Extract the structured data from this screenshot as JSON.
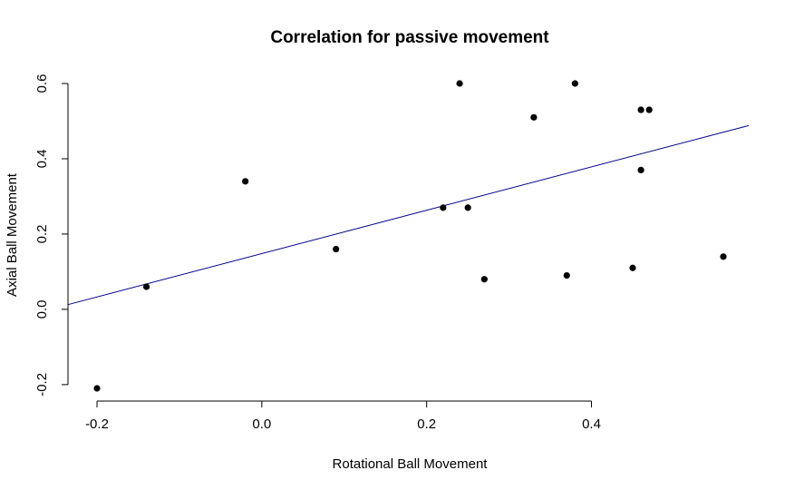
{
  "chart_data": {
    "type": "scatter",
    "title": "Correlation for passive movement",
    "xlabel": "Rotational Ball Movement",
    "ylabel": "Axial Ball Movement",
    "x_ticks": [
      -0.2,
      0.0,
      0.2,
      0.4
    ],
    "x_tick_labels": [
      "-0.2",
      "0.0",
      "0.2",
      "0.4"
    ],
    "y_ticks": [
      -0.2,
      0.0,
      0.2,
      0.4,
      0.6
    ],
    "y_tick_labels": [
      "-0.2",
      "0.0",
      "0.2",
      "0.4",
      "0.6"
    ],
    "xlim": [
      -0.2,
      0.56
    ],
    "ylim": [
      -0.21,
      0.6
    ],
    "grid": false,
    "series": [
      {
        "x": [
          -0.2,
          -0.14,
          -0.02,
          0.09,
          0.22,
          0.24,
          0.25,
          0.27,
          0.33,
          0.37,
          0.38,
          0.45,
          0.46,
          0.46,
          0.47,
          0.56
        ],
        "y": [
          -0.21,
          0.06,
          0.34,
          0.16,
          0.27,
          0.6,
          0.27,
          0.08,
          0.51,
          0.09,
          0.6,
          0.11,
          0.53,
          0.37,
          0.53,
          0.14
        ],
        "color": "#000000"
      }
    ],
    "regression_line": {
      "intercept": 0.148,
      "slope": 0.576,
      "color": "#00008B"
    }
  }
}
